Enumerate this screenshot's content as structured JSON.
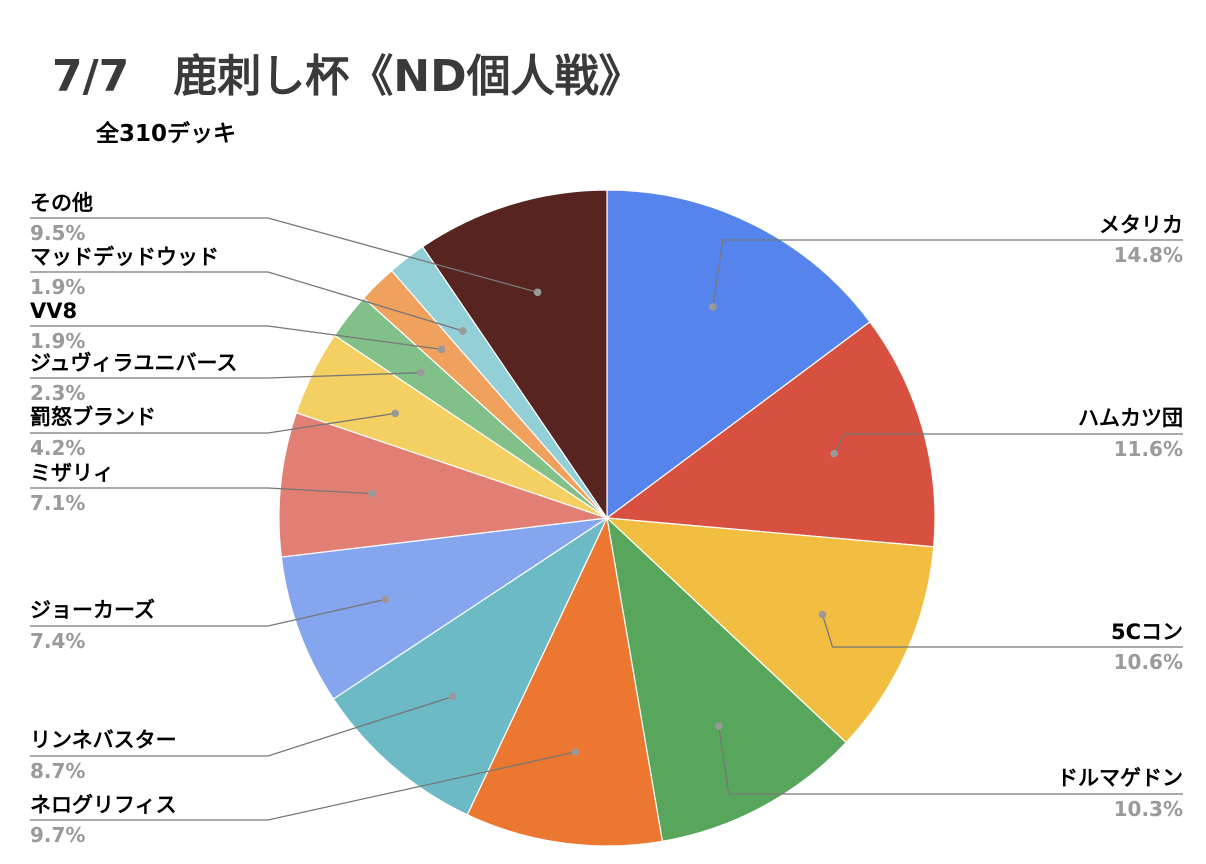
{
  "header": {
    "title": "7/7　鹿刺し杯《ND個人戦》",
    "subtitle": "全310デッキ"
  },
  "chart_data": {
    "type": "pie",
    "title": "7/7　鹿刺し杯《ND個人戦》",
    "subtitle": "全310デッキ",
    "slices": [
      {
        "label": "メタリカ",
        "value": 14.8,
        "pct_label": "14.8%",
        "color": "#5584ec"
      },
      {
        "label": "ハムカツ団",
        "value": 11.6,
        "pct_label": "11.6%",
        "color": "#d85140"
      },
      {
        "label": "5Cコン",
        "value": 10.6,
        "pct_label": "10.6%",
        "color": "#f1be42"
      },
      {
        "label": "ドルマゲドン",
        "value": 10.3,
        "pct_label": "10.3%",
        "color": "#58a65c"
      },
      {
        "label": "ネログリフィス",
        "value": 9.7,
        "pct_label": "9.7%",
        "color": "#ec7730"
      },
      {
        "label": "リンネバスター",
        "value": 8.7,
        "pct_label": "8.7%",
        "color": "#6bbac6"
      },
      {
        "label": "ジョーカーズ",
        "value": 7.4,
        "pct_label": "7.4%",
        "color": "#85a6ee"
      },
      {
        "label": "ミザリィ",
        "value": 7.1,
        "pct_label": "7.1%",
        "color": "#e27f75"
      },
      {
        "label": "罰怒ブランド",
        "value": 4.2,
        "pct_label": "4.2%",
        "color": "#f4d062"
      },
      {
        "label": "ジュヴィラユニバース",
        "value": 2.3,
        "pct_label": "2.3%",
        "color": "#82c08a"
      },
      {
        "label": "VV8",
        "value": 1.9,
        "pct_label": "1.9%",
        "color": "#f0a15e"
      },
      {
        "label": "マッドデッドウッド",
        "value": 1.9,
        "pct_label": "1.9%",
        "color": "#93cfd6"
      },
      {
        "label": "その他",
        "value": 9.5,
        "pct_label": "9.5%",
        "color": "#572420"
      }
    ],
    "legend": "none",
    "label_position": "outside-with-leader-lines"
  }
}
